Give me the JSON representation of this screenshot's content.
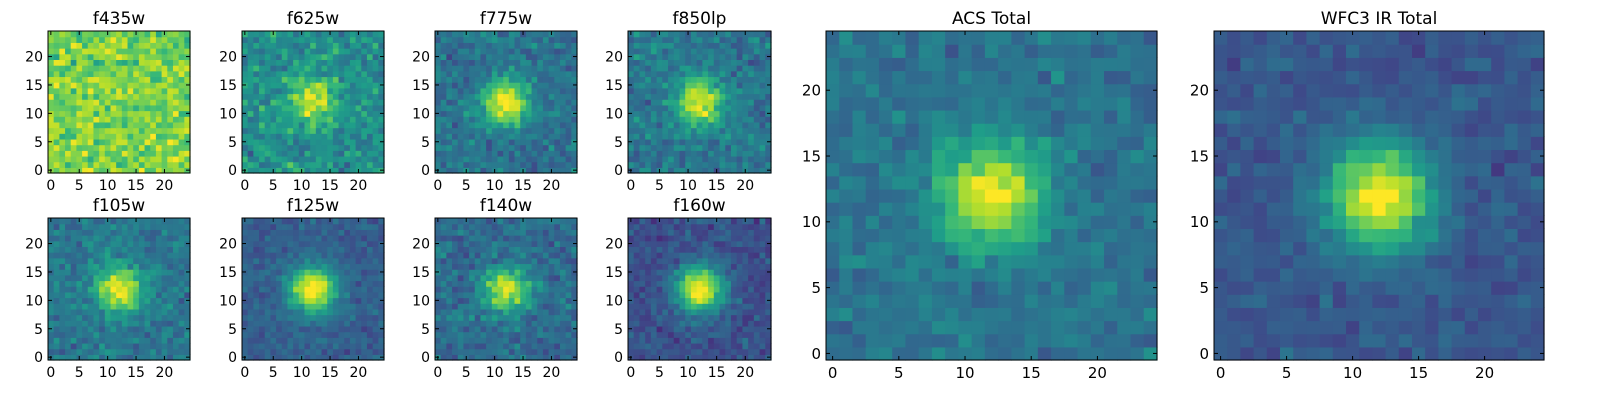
{
  "chart_data": [
    {
      "type": "heatmap",
      "title": "f435w",
      "colormap": "viridis",
      "grid_size": 25,
      "xlim": [
        0,
        24
      ],
      "ylim": [
        0,
        24
      ],
      "x_ticks": [
        0,
        5,
        10,
        15,
        20
      ],
      "y_ticks": [
        0,
        5,
        10,
        15,
        20
      ],
      "source_center": null,
      "peak": 0,
      "background": 0.8,
      "noise": 0.18
    },
    {
      "type": "heatmap",
      "title": "f625w",
      "colormap": "viridis",
      "grid_size": 25,
      "xlim": [
        0,
        24
      ],
      "ylim": [
        0,
        24
      ],
      "x_ticks": [
        0,
        5,
        10,
        15,
        20
      ],
      "y_ticks": [
        0,
        5,
        10,
        15,
        20
      ],
      "source_center": [
        12,
        12
      ],
      "peak": 0.45,
      "background": 0.5,
      "noise": 0.17
    },
    {
      "type": "heatmap",
      "title": "f775w",
      "colormap": "viridis",
      "grid_size": 25,
      "xlim": [
        0,
        24
      ],
      "ylim": [
        0,
        24
      ],
      "x_ticks": [
        0,
        5,
        10,
        15,
        20
      ],
      "y_ticks": [
        0,
        5,
        10,
        15,
        20
      ],
      "source_center": [
        12,
        12
      ],
      "peak": 0.65,
      "background": 0.38,
      "noise": 0.13
    },
    {
      "type": "heatmap",
      "title": "f850lp",
      "colormap": "viridis",
      "grid_size": 25,
      "xlim": [
        0,
        24
      ],
      "ylim": [
        0,
        24
      ],
      "x_ticks": [
        0,
        5,
        10,
        15,
        20
      ],
      "y_ticks": [
        0,
        5,
        10,
        15,
        20
      ],
      "source_center": [
        12,
        12
      ],
      "peak": 0.6,
      "background": 0.4,
      "noise": 0.14
    },
    {
      "type": "heatmap",
      "title": "f105w",
      "colormap": "viridis",
      "grid_size": 25,
      "xlim": [
        0,
        24
      ],
      "ylim": [
        0,
        24
      ],
      "x_ticks": [
        0,
        5,
        10,
        15,
        20
      ],
      "y_ticks": [
        0,
        5,
        10,
        15,
        20
      ],
      "source_center": [
        12,
        12
      ],
      "peak": 0.6,
      "background": 0.4,
      "noise": 0.12
    },
    {
      "type": "heatmap",
      "title": "f125w",
      "colormap": "viridis",
      "grid_size": 25,
      "xlim": [
        0,
        24
      ],
      "ylim": [
        0,
        24
      ],
      "x_ticks": [
        0,
        5,
        10,
        15,
        20
      ],
      "y_ticks": [
        0,
        5,
        10,
        15,
        20
      ],
      "source_center": [
        12,
        12
      ],
      "peak": 0.75,
      "background": 0.3,
      "noise": 0.09
    },
    {
      "type": "heatmap",
      "title": "f140w",
      "colormap": "viridis",
      "grid_size": 25,
      "xlim": [
        0,
        24
      ],
      "ylim": [
        0,
        24
      ],
      "x_ticks": [
        0,
        5,
        10,
        15,
        20
      ],
      "y_ticks": [
        0,
        5,
        10,
        15,
        20
      ],
      "source_center": [
        12,
        12
      ],
      "peak": 0.6,
      "background": 0.35,
      "noise": 0.13
    },
    {
      "type": "heatmap",
      "title": "f160w",
      "colormap": "viridis",
      "grid_size": 25,
      "xlim": [
        0,
        24
      ],
      "ylim": [
        0,
        24
      ],
      "x_ticks": [
        0,
        5,
        10,
        15,
        20
      ],
      "y_ticks": [
        0,
        5,
        10,
        15,
        20
      ],
      "source_center": [
        12,
        12
      ],
      "peak": 0.8,
      "background": 0.25,
      "noise": 0.1
    },
    {
      "type": "heatmap",
      "title": "ACS Total",
      "colormap": "viridis",
      "grid_size": 25,
      "xlim": [
        0,
        24
      ],
      "ylim": [
        0,
        24
      ],
      "x_ticks": [
        0,
        5,
        10,
        15,
        20
      ],
      "y_ticks": [
        0,
        5,
        10,
        15,
        20
      ],
      "source_center": [
        12,
        12
      ],
      "peak": 0.62,
      "background": 0.38,
      "noise": 0.1
    },
    {
      "type": "heatmap",
      "title": "WFC3 IR Total",
      "colormap": "viridis",
      "grid_size": 25,
      "xlim": [
        0,
        24
      ],
      "ylim": [
        0,
        24
      ],
      "x_ticks": [
        0,
        5,
        10,
        15,
        20
      ],
      "y_ticks": [
        0,
        5,
        10,
        15,
        20
      ],
      "source_center": [
        12,
        12
      ],
      "peak": 0.75,
      "background": 0.27,
      "noise": 0.08
    }
  ]
}
